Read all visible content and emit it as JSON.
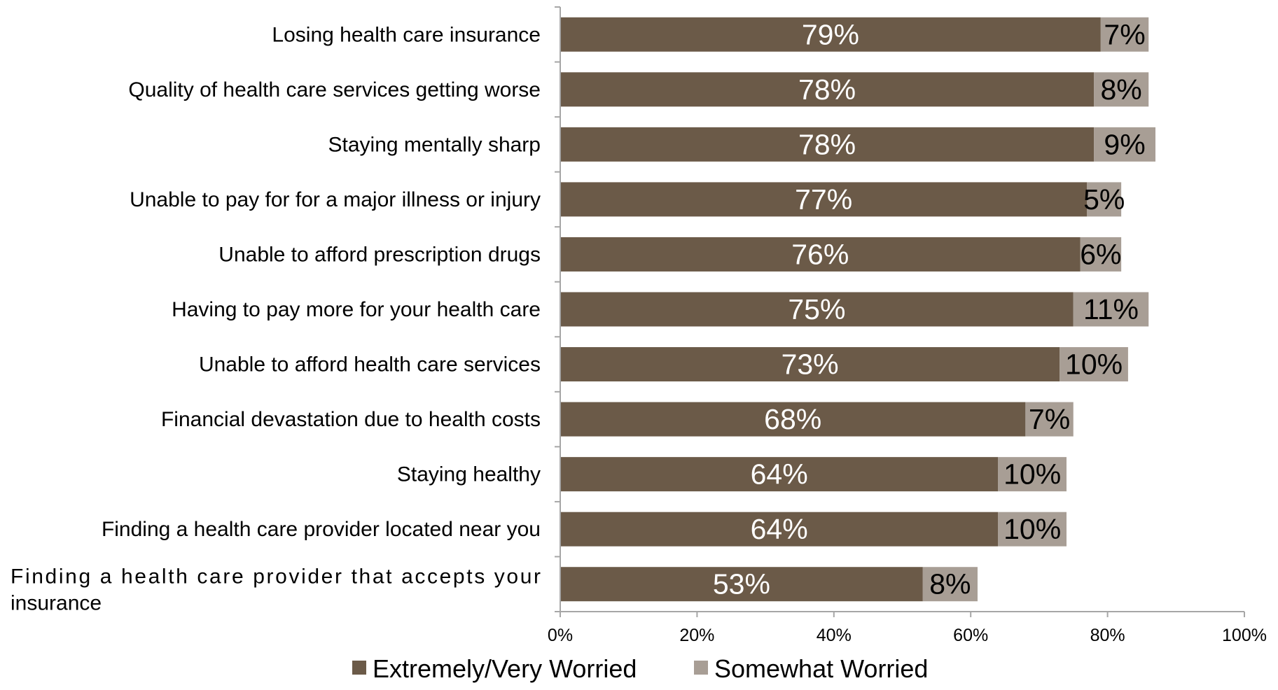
{
  "chart_data": {
    "type": "bar",
    "orientation": "horizontal",
    "stacked": true,
    "categories": [
      "Losing health care insurance",
      "Quality of health care services getting worse",
      "Staying mentally sharp",
      "Unable to pay for for a major illness or injury",
      "Unable to afford prescription drugs",
      "Having to pay more for your health care",
      "Unable to afford health care services",
      "Financial devastation due to health costs",
      "Staying healthy",
      "Finding a health care provider located near you",
      "Finding a health care provider that accepts your insurance"
    ],
    "series": [
      {
        "name": "Extremely/Very Worried",
        "values": [
          79,
          78,
          78,
          77,
          76,
          75,
          73,
          68,
          64,
          64,
          53
        ],
        "labels": [
          "79%",
          "78%",
          "78%",
          "77%",
          "76%",
          "75%",
          "73%",
          "68%",
          "64%",
          "64%",
          "53%"
        ],
        "color": "#6b5a48",
        "label_color": "#ffffff"
      },
      {
        "name": "Somewhat Worried",
        "values": [
          7,
          8,
          9,
          5,
          6,
          11,
          10,
          7,
          10,
          10,
          8
        ],
        "labels": [
          "7%",
          "8%",
          "9%",
          "5%",
          "6%",
          "11%",
          "10%",
          "7%",
          "10%",
          "10%",
          "8%"
        ],
        "color": "#a89e95",
        "label_color": "#000000"
      }
    ],
    "xlim": [
      0,
      100
    ],
    "xticks": [
      0,
      20,
      40,
      60,
      80,
      100
    ],
    "xtick_labels": [
      "0%",
      "20%",
      "40%",
      "60%",
      "80%",
      "100%"
    ],
    "grid": false,
    "legend_position": "bottom",
    "axis_color": "#a6a6a6"
  }
}
